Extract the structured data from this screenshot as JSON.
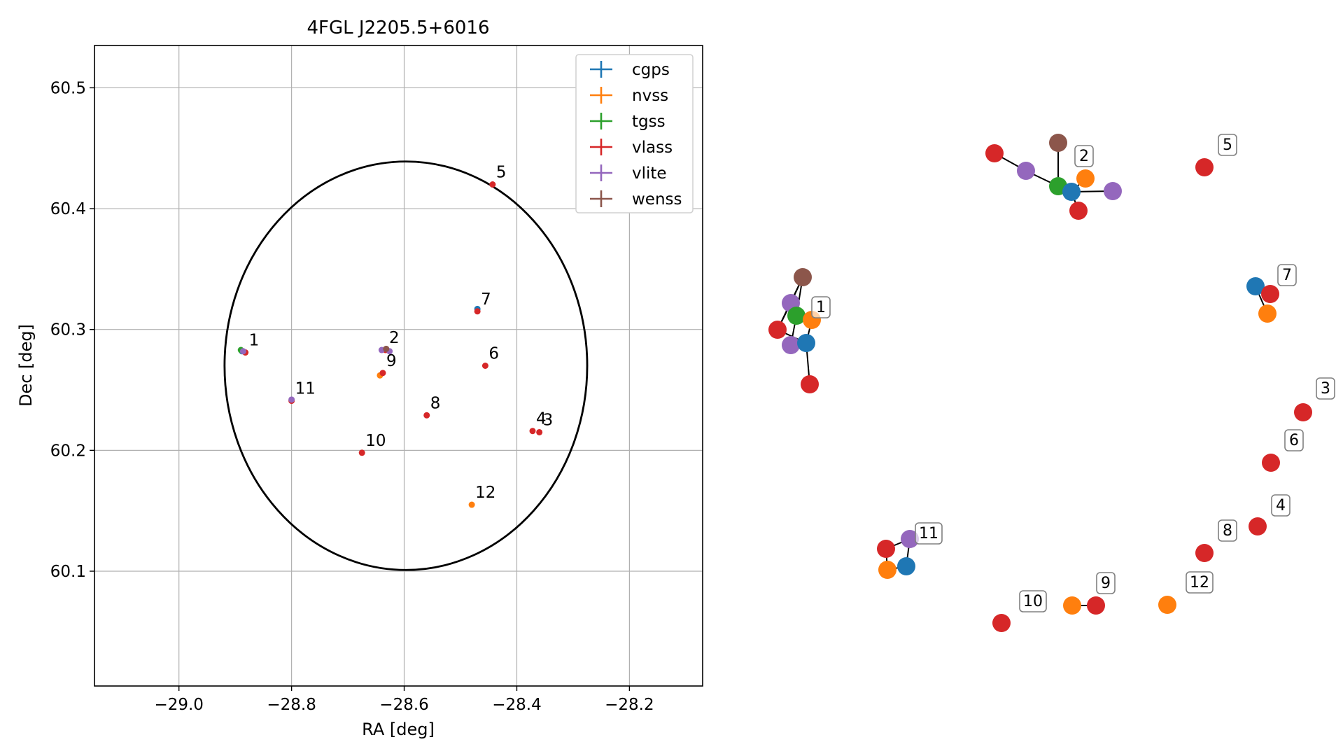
{
  "chart_data": [
    {
      "type": "scatter",
      "title": "4FGL J2205.5+6016",
      "xlabel": "RA [deg]",
      "ylabel": "Dec [deg]",
      "xlim": [
        -29.15,
        -28.07
      ],
      "ylim": [
        60.005,
        60.535
      ],
      "xticks": [
        -29.0,
        -28.8,
        -28.6,
        -28.4,
        -28.2
      ],
      "xtick_labels": [
        "−29.0",
        "−28.8",
        "−28.6",
        "−28.4",
        "−28.2"
      ],
      "yticks": [
        60.1,
        60.2,
        60.3,
        60.4,
        60.5
      ],
      "ytick_labels": [
        "60.1",
        "60.2",
        "60.3",
        "60.4",
        "60.5"
      ],
      "grid": true,
      "legend_position": "top-right",
      "colors": {
        "cgps": "#1f77b4",
        "nvss": "#ff7f0e",
        "tgss": "#2ca02c",
        "vlass": "#d62728",
        "vlite": "#9467bd",
        "wenss": "#8c564b"
      },
      "series": [
        {
          "name": "cgps",
          "points": [
            [
              -28.888,
              60.282
            ],
            [
              -28.47,
              60.317
            ]
          ]
        },
        {
          "name": "nvss",
          "points": [
            [
              -28.643,
              60.262
            ],
            [
              -28.48,
              60.155
            ]
          ]
        },
        {
          "name": "tgss",
          "points": [
            [
              -28.89,
              60.283
            ]
          ]
        },
        {
          "name": "vlass",
          "points": [
            [
              -28.882,
              60.281
            ],
            [
              -28.633,
              60.283
            ],
            [
              -28.36,
              60.215
            ],
            [
              -28.372,
              60.216
            ],
            [
              -28.443,
              60.42
            ],
            [
              -28.456,
              60.27
            ],
            [
              -28.47,
              60.315
            ],
            [
              -28.56,
              60.229
            ],
            [
              -28.638,
              60.264
            ],
            [
              -28.675,
              60.198
            ],
            [
              -28.8,
              60.241
            ]
          ]
        },
        {
          "name": "vlite",
          "points": [
            [
              -28.886,
              60.282
            ],
            [
              -28.64,
              60.283
            ],
            [
              -28.626,
              60.282
            ],
            [
              -28.8,
              60.242
            ]
          ]
        },
        {
          "name": "wenss",
          "points": [
            [
              -28.632,
              60.284
            ]
          ]
        }
      ],
      "source_labels": [
        {
          "label": "1",
          "x": -28.882,
          "y": 60.281
        },
        {
          "label": "2",
          "x": -28.633,
          "y": 60.283
        },
        {
          "label": "3",
          "x": -28.36,
          "y": 60.215
        },
        {
          "label": "4",
          "x": -28.372,
          "y": 60.216
        },
        {
          "label": "5",
          "x": -28.443,
          "y": 60.42
        },
        {
          "label": "6",
          "x": -28.456,
          "y": 60.27
        },
        {
          "label": "7",
          "x": -28.47,
          "y": 60.315
        },
        {
          "label": "8",
          "x": -28.56,
          "y": 60.229
        },
        {
          "label": "9",
          "x": -28.638,
          "y": 60.264
        },
        {
          "label": "10",
          "x": -28.675,
          "y": 60.198
        },
        {
          "label": "11",
          "x": -28.8,
          "y": 60.241
        },
        {
          "label": "12",
          "x": -28.48,
          "y": 60.155
        }
      ],
      "ellipse": {
        "center": [
          -28.597,
          60.27
        ],
        "semi_x": 0.322,
        "semi_y": 0.169
      }
    },
    {
      "type": "scatter",
      "title": "",
      "groups": [
        {
          "label": "1",
          "anchor": "vlass",
          "points": [
            [
              "vlass",
              0.43,
              0.41
            ],
            [
              "cgps",
              0.78,
              0.46
            ],
            [
              "nvss",
              0.82,
              0.56
            ],
            [
              "tgss",
              0.55,
              0.58
            ],
            [
              "vlite",
              0.45,
              0.64
            ],
            [
              "wenss",
              0.62,
              0.85
            ],
            [
              "vlite",
              0.35,
              0.44
            ],
            [
              "vlass",
              0.28,
              0.52
            ],
            [
              "vlass",
              0.88,
              0.2
            ]
          ],
          "edges": [
            [
              0,
              1
            ],
            [
              0,
              2
            ],
            [
              0,
              3
            ],
            [
              0,
              4
            ],
            [
              0,
              5
            ],
            [
              0,
              6
            ],
            [
              0,
              7
            ],
            [
              1,
              8
            ]
          ]
        },
        {
          "label": "2",
          "anchor": "tgss",
          "points": [
            [
              "tgss",
              0.5,
              0.55
            ],
            [
              "cgps",
              0.55,
              0.5
            ],
            [
              "nvss",
              0.64,
              0.6
            ],
            [
              "wenss",
              0.5,
              0.8
            ],
            [
              "vlite",
              0.3,
              0.64
            ],
            [
              "vlass",
              0.2,
              0.74
            ],
            [
              "vlite",
              0.72,
              0.52
            ],
            [
              "vlass",
              0.58,
              0.39
            ]
          ],
          "edges": [
            [
              0,
              1
            ],
            [
              0,
              3
            ],
            [
              0,
              4
            ],
            [
              4,
              5
            ],
            [
              1,
              2
            ],
            [
              1,
              6
            ],
            [
              1,
              7
            ]
          ]
        }
      ]
    }
  ],
  "legend": {
    "entries": [
      {
        "name": "cgps",
        "color": "#1f77b4"
      },
      {
        "name": "nvss",
        "color": "#ff7f0e"
      },
      {
        "name": "tgss",
        "color": "#2ca02c"
      },
      {
        "name": "vlass",
        "color": "#d62728"
      },
      {
        "name": "vlite",
        "color": "#9467bd"
      },
      {
        "name": "wenss",
        "color": "#8c564b"
      }
    ]
  },
  "right_panel": {
    "sources": [
      {
        "label": "1",
        "markers": [
          [
            "wenss"
          ],
          [
            "vlite"
          ],
          [
            "tgss"
          ],
          [
            "nvss"
          ],
          [
            "vlass"
          ],
          [
            "vlite"
          ],
          [
            "cgps"
          ],
          [
            "vlass"
          ]
        ]
      },
      {
        "label": "2",
        "markers": [
          [
            "vlass"
          ],
          [
            "vlite"
          ],
          [
            "wenss"
          ],
          [
            "tgss"
          ],
          [
            "cgps"
          ],
          [
            "nvss"
          ],
          [
            "vlite"
          ],
          [
            "vlass"
          ]
        ]
      },
      {
        "label": "3",
        "markers": [
          [
            "vlass"
          ]
        ]
      },
      {
        "label": "4",
        "markers": [
          [
            "vlass"
          ]
        ]
      },
      {
        "label": "5",
        "markers": [
          [
            "vlass"
          ]
        ]
      },
      {
        "label": "6",
        "markers": [
          [
            "vlass"
          ]
        ]
      },
      {
        "label": "7",
        "markers": [
          [
            "cgps"
          ],
          [
            "vlass"
          ],
          [
            "nvss"
          ]
        ]
      },
      {
        "label": "8",
        "markers": [
          [
            "vlass"
          ]
        ]
      },
      {
        "label": "9",
        "markers": [
          [
            "nvss"
          ],
          [
            "vlass"
          ]
        ]
      },
      {
        "label": "10",
        "markers": [
          [
            "vlass"
          ]
        ]
      },
      {
        "label": "11",
        "markers": [
          [
            "vlass"
          ],
          [
            "vlite"
          ],
          [
            "nvss"
          ],
          [
            "cgps"
          ]
        ]
      },
      {
        "label": "12",
        "markers": [
          [
            "nvss"
          ]
        ]
      }
    ]
  }
}
